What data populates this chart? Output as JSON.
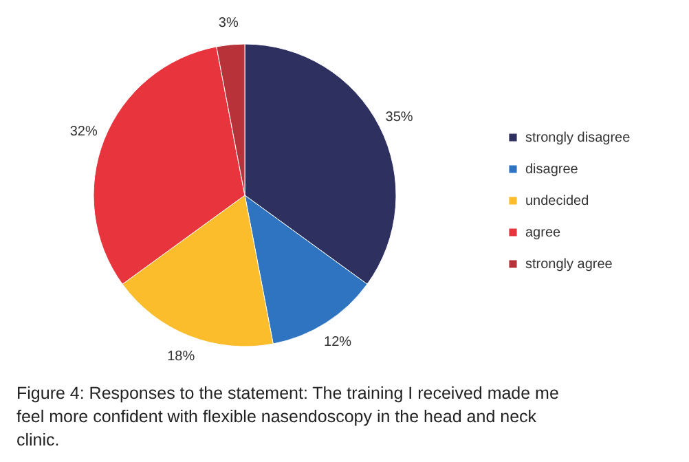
{
  "chart_data": {
    "type": "pie",
    "categories": [
      "strongly disagree",
      "disagree",
      "undecided",
      "agree",
      "strongly agree"
    ],
    "values": [
      35,
      12,
      18,
      32,
      3
    ],
    "value_labels": [
      "35%",
      "12%",
      "18%",
      "32%",
      "3%"
    ],
    "colors": [
      "#2e3160",
      "#2f74c0",
      "#fbbd2c",
      "#e8343c",
      "#b8323a"
    ],
    "legend": "right",
    "annotations": [
      "Figure 4: Responses to the statement: The training I received made me feel more confident with flexible nasendoscopy in the head and neck clinic."
    ]
  }
}
